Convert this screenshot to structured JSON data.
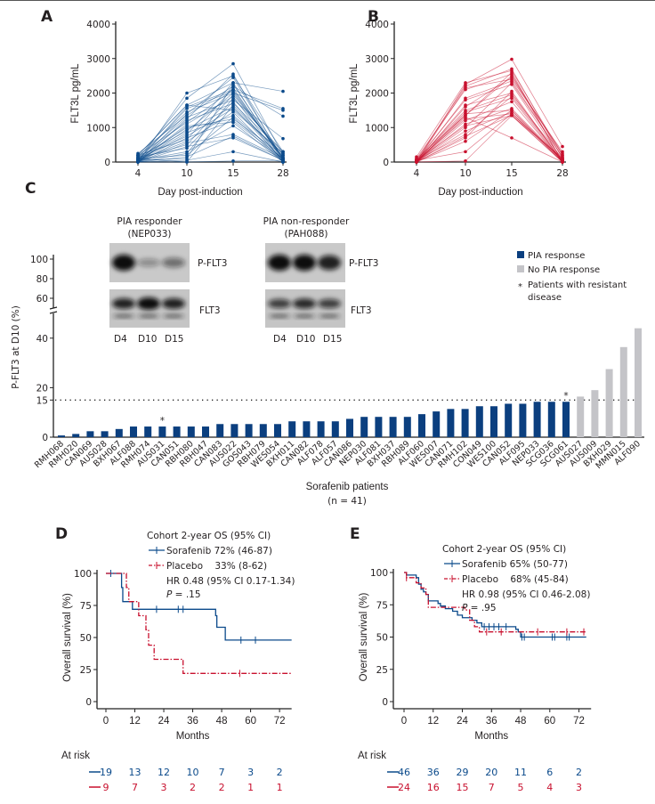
{
  "colors": {
    "sorafenib": "#0b4a8b",
    "placebo": "#c8102e",
    "pia_response": "#0b3f7f",
    "no_pia_response": "#c4c4c8"
  },
  "chart_data": [
    {
      "panel": "A",
      "type": "line",
      "ylabel": "FLT3L pg/mL",
      "xlabel": "Day post-induction",
      "x": [
        "4",
        "10",
        "15",
        "28"
      ],
      "yticks": [
        "0",
        "1000",
        "2000",
        "3000",
        "4000"
      ],
      "ylim": [
        0,
        4000
      ],
      "color": "#0b4a8b",
      "series": [
        [
          0,
          2000,
          2500,
          300
        ],
        [
          100,
          1850,
          2850,
          200
        ],
        [
          200,
          1650,
          2300,
          2050
        ],
        [
          50,
          1600,
          2100,
          1550
        ],
        [
          150,
          1450,
          2000,
          1500
        ],
        [
          0,
          1400,
          2450,
          100
        ],
        [
          250,
          1350,
          2200,
          1330
        ],
        [
          100,
          1300,
          1800,
          680
        ],
        [
          0,
          1250,
          2550,
          50
        ],
        [
          50,
          1200,
          1700,
          300
        ],
        [
          200,
          1150,
          2100,
          100
        ],
        [
          0,
          1100,
          1900,
          0
        ],
        [
          100,
          1000,
          1250,
          200
        ],
        [
          0,
          950,
          1600,
          50
        ],
        [
          150,
          900,
          2000,
          150
        ],
        [
          50,
          850,
          1350,
          100
        ],
        [
          0,
          800,
          2300,
          0
        ],
        [
          100,
          750,
          1550,
          250
        ],
        [
          0,
          700,
          1200,
          100
        ],
        [
          200,
          650,
          2150,
          50
        ],
        [
          50,
          600,
          1450,
          0
        ],
        [
          0,
          550,
          800,
          100
        ],
        [
          100,
          500,
          1950,
          200
        ],
        [
          0,
          450,
          700,
          50
        ],
        [
          150,
          400,
          1750,
          0
        ],
        [
          50,
          300,
          1050,
          100
        ],
        [
          0,
          250,
          1850,
          300
        ],
        [
          100,
          200,
          1300,
          0
        ],
        [
          0,
          150,
          750,
          50
        ],
        [
          50,
          100,
          2250,
          100
        ],
        [
          0,
          50,
          300,
          0
        ],
        [
          100,
          0,
          1650,
          150
        ],
        [
          0,
          0,
          30,
          50
        ],
        [
          50,
          1550,
          2050,
          100
        ],
        [
          0,
          1050,
          1150,
          0
        ],
        [
          200,
          1650,
          1500,
          250
        ]
      ]
    },
    {
      "panel": "B",
      "type": "line",
      "ylabel": "FLT3L pg/mL",
      "xlabel": "Day post-induction",
      "x": [
        "4",
        "10",
        "15",
        "28"
      ],
      "yticks": [
        "0",
        "1000",
        "2000",
        "3000",
        "4000"
      ],
      "ylim": [
        0,
        4000
      ],
      "color": "#c8102e",
      "series": [
        [
          150,
          2300,
          2650,
          200
        ],
        [
          0,
          2250,
          2980,
          450
        ],
        [
          50,
          2200,
          2700,
          100
        ],
        [
          0,
          2150,
          2400,
          300
        ],
        [
          100,
          2100,
          2550,
          0
        ],
        [
          0,
          1850,
          2350,
          150
        ],
        [
          50,
          1800,
          2250,
          50
        ],
        [
          0,
          1650,
          2000,
          0
        ],
        [
          0,
          1600,
          2450,
          250
        ],
        [
          50,
          1500,
          1950,
          100
        ],
        [
          0,
          1450,
          1850,
          0
        ],
        [
          0,
          1400,
          1500,
          50
        ],
        [
          100,
          1350,
          2500,
          200
        ],
        [
          0,
          1300,
          700,
          0
        ],
        [
          50,
          1250,
          1400,
          100
        ],
        [
          0,
          1200,
          1750,
          0
        ],
        [
          0,
          1100,
          1550,
          50
        ],
        [
          50,
          1050,
          1350,
          0
        ],
        [
          0,
          1000,
          2300,
          150
        ],
        [
          0,
          900,
          1450,
          0
        ],
        [
          50,
          800,
          1900,
          50
        ],
        [
          0,
          750,
          1350,
          100
        ],
        [
          0,
          700,
          2050,
          0
        ],
        [
          0,
          600,
          1500,
          0
        ],
        [
          50,
          300,
          1400,
          50
        ],
        [
          0,
          30,
          1350,
          0
        ],
        [
          0,
          1350,
          2600,
          0
        ]
      ]
    },
    {
      "panel": "C",
      "type": "bar",
      "ylabel": "P-FLT3 at D10 (%)",
      "xlabel": "Sorafenib patients",
      "xlabel_n": "(n = 41)",
      "yticks_lower": [
        "0",
        "15",
        "20",
        "40"
      ],
      "yticks_upper": [
        "60",
        "80",
        "100"
      ],
      "threshold": 15,
      "categories": [
        "RMH068",
        "RMH020",
        "CAN069",
        "AUS028",
        "BXH067",
        "ALF088",
        "RMH074",
        "AUS031",
        "CAN051",
        "RBH080",
        "RBH047",
        "CAN083",
        "AUS022",
        "GOS043",
        "RBH079",
        "WES054",
        "BXH011",
        "CAN082",
        "ALF078",
        "ALF057",
        "CAN086",
        "NEP030",
        "ALF081",
        "BXH037",
        "RBH089",
        "ALF060",
        "WES007",
        "CAN071",
        "RMH102",
        "CON049",
        "WES100",
        "CAN052",
        "ALF095",
        "NEP033",
        "SCG036",
        "SCG061",
        "AUS027",
        "AUS009",
        "BXH029",
        "MMN015",
        "ALF090"
      ],
      "values": [
        0.7,
        1.3,
        2.4,
        2.4,
        3.3,
        4.3,
        4.3,
        4.3,
        4.3,
        4.3,
        4.3,
        5.3,
        5.3,
        5.3,
        5.3,
        5.3,
        6.4,
        6.4,
        6.4,
        6.4,
        7.4,
        8.2,
        8.2,
        8.2,
        8.2,
        9.3,
        10.4,
        11.4,
        11.4,
        12.5,
        12.5,
        13.5,
        13.5,
        14.3,
        14.3,
        14.3,
        16.4,
        19,
        27.5,
        36.4,
        44
      ],
      "response": [
        "PIA",
        "PIA",
        "PIA",
        "PIA",
        "PIA",
        "PIA",
        "PIA",
        "PIA",
        "PIA",
        "PIA",
        "PIA",
        "PIA",
        "PIA",
        "PIA",
        "PIA",
        "PIA",
        "PIA",
        "PIA",
        "PIA",
        "PIA",
        "PIA",
        "PIA",
        "PIA",
        "PIA",
        "PIA",
        "PIA",
        "PIA",
        "PIA",
        "PIA",
        "PIA",
        "PIA",
        "PIA",
        "PIA",
        "PIA",
        "PIA",
        "PIA",
        "None",
        "None",
        "None",
        "None",
        "None"
      ],
      "resistant": [
        "AUS031",
        "SCG061"
      ],
      "legend": {
        "pia": "PIA response",
        "none": "No PIA response",
        "star": "*",
        "resistant_1": "Patients with resistant",
        "resistant_2": "disease"
      },
      "legend_position": "top-right"
    },
    {
      "panel": "D",
      "type": "line",
      "subtype": "kaplan-meier",
      "ylabel": "Overall survival (%)",
      "xlabel": "Months",
      "xticks": [
        "0",
        "12",
        "24",
        "36",
        "48",
        "60",
        "72"
      ],
      "yticks": [
        "0",
        "25",
        "50",
        "75",
        "100"
      ],
      "legend_title": "Cohort 2-year OS (95% CI)",
      "sorafenib_label": "Sorafenib 72% (46-87)",
      "placebo_label": "Placebo    33% (8-62)",
      "hr": "HR 0.48 (95% CI 0.17-1.34)",
      "p_symbol": "P",
      "p_value": " = .15",
      "series": [
        {
          "name": "Sorafenib",
          "steps": [
            [
              0,
              100
            ],
            [
              6.5,
              89
            ],
            [
              7,
              78
            ],
            [
              11,
              72
            ],
            [
              45.5,
              67
            ],
            [
              46,
              58
            ],
            [
              49.5,
              48
            ]
          ],
          "end": 77,
          "censored": [
            2,
            21,
            30,
            32,
            56,
            62
          ]
        },
        {
          "name": "Placebo",
          "steps": [
            [
              0,
              100
            ],
            [
              8.5,
              89
            ],
            [
              9.5,
              78
            ],
            [
              13.6,
              67
            ],
            [
              16.6,
              56
            ],
            [
              17.7,
              44
            ],
            [
              20,
              33
            ],
            [
              32,
              22
            ]
          ],
          "end": 77,
          "censored": [
            55.5
          ]
        }
      ],
      "at_risk_label": "At risk",
      "at_risk": {
        "sorafenib": [
          "19",
          "13",
          "12",
          "10",
          "7",
          "3",
          "2"
        ],
        "placebo": [
          "9",
          "7",
          "3",
          "2",
          "2",
          "1",
          "1"
        ]
      }
    },
    {
      "panel": "E",
      "type": "line",
      "subtype": "kaplan-meier",
      "ylabel": "Overall survival (%)",
      "xlabel": "Months",
      "xticks": [
        "0",
        "12",
        "24",
        "36",
        "48",
        "60",
        "72"
      ],
      "yticks": [
        "0",
        "25",
        "50",
        "75",
        "100"
      ],
      "legend_title": "Cohort 2-year OS (95% CI)",
      "sorafenib_label": "Sorafenib 65% (50-77)",
      "placebo_label": "Placebo    68% (45-84)",
      "hr": "HR 0.98 (95% CI 0.46-2.08)",
      "p_symbol": "P",
      "p_value": " = .95",
      "series": [
        {
          "name": "Sorafenib",
          "steps": [
            [
              0,
              100
            ],
            [
              1,
              98
            ],
            [
              5,
              96
            ],
            [
              6,
              91
            ],
            [
              7,
              87
            ],
            [
              8,
              85
            ],
            [
              9,
              83
            ],
            [
              10,
              78
            ],
            [
              14,
              76
            ],
            [
              15,
              74
            ],
            [
              17,
              72
            ],
            [
              20,
              70
            ],
            [
              22,
              67
            ],
            [
              24,
              65
            ],
            [
              28,
              63
            ],
            [
              30,
              61
            ],
            [
              32,
              58
            ],
            [
              46,
              56
            ],
            [
              47,
              54
            ],
            [
              48,
              50
            ]
          ],
          "end": 75,
          "censored": [
            33,
            35,
            37,
            39,
            42,
            48.5,
            49.5,
            61,
            62,
            67,
            68
          ]
        },
        {
          "name": "Placebo",
          "steps": [
            [
              0,
              100
            ],
            [
              1,
              96
            ],
            [
              5,
              92
            ],
            [
              7,
              88
            ],
            [
              9,
              83
            ],
            [
              10,
              73
            ],
            [
              25,
              71
            ],
            [
              27,
              63
            ],
            [
              29,
              58
            ],
            [
              31,
              54
            ]
          ],
          "end": 75,
          "censored": [
            1,
            34,
            40,
            55,
            67,
            74
          ]
        }
      ],
      "at_risk_label": "At risk",
      "at_risk": {
        "sorafenib": [
          "46",
          "36",
          "29",
          "20",
          "11",
          "6",
          "2"
        ],
        "placebo": [
          "24",
          "16",
          "15",
          "7",
          "5",
          "4",
          "3"
        ]
      }
    }
  ],
  "panels": {
    "a": "A",
    "b": "B",
    "c": "C",
    "d": "D",
    "e": "E"
  },
  "blots": {
    "responder_title": "PIA responder",
    "responder_id": "(NEP033)",
    "nonresponder_title": "PIA non-responder",
    "nonresponder_id": "(PAH088)",
    "pflt3": "P-FLT3",
    "flt3": "FLT3",
    "lanes": [
      "D4",
      "D10",
      "D15"
    ]
  }
}
